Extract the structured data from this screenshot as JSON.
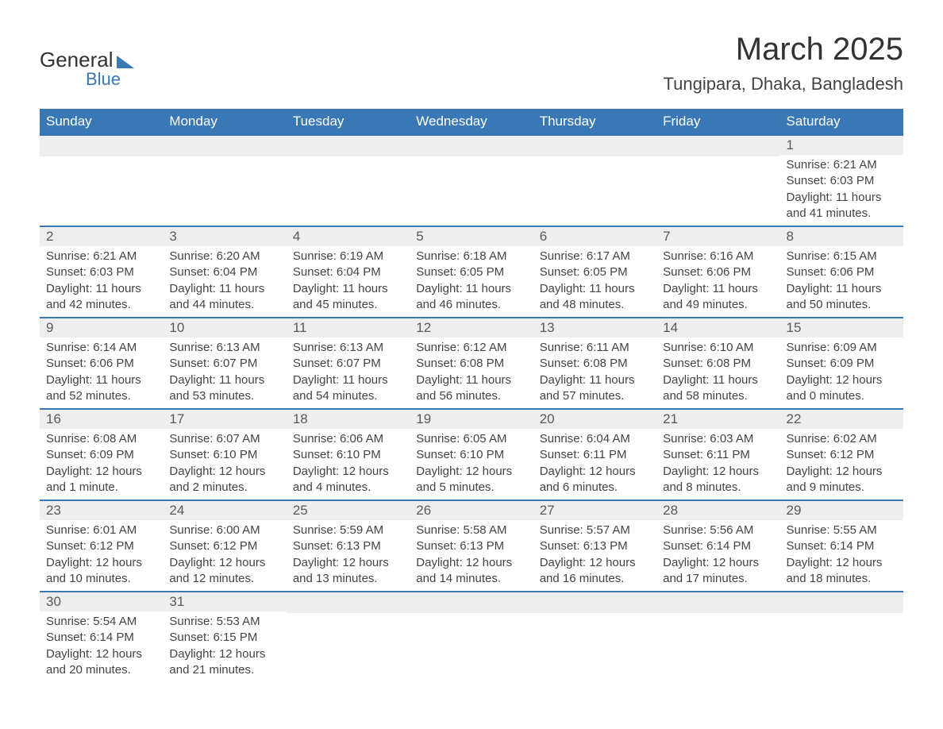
{
  "logo": {
    "text1": "General",
    "text2": "Blue"
  },
  "title": "March 2025",
  "subtitle": "Tungipara, Dhaka, Bangladesh",
  "colors": {
    "header_bg": "#3a78b5",
    "header_text": "#ffffff",
    "daynum_bg": "#eeeeee",
    "daynum_text": "#595959",
    "body_text": "#444444",
    "row_border": "#3a78b5",
    "background": "#ffffff"
  },
  "layout": {
    "columns": [
      "Sunday",
      "Monday",
      "Tuesday",
      "Wednesday",
      "Thursday",
      "Friday",
      "Saturday"
    ],
    "type": "calendar-table"
  },
  "weeks": [
    [
      null,
      null,
      null,
      null,
      null,
      null,
      {
        "d": "1",
        "sunrise": "Sunrise: 6:21 AM",
        "sunset": "Sunset: 6:03 PM",
        "daylight": "Daylight: 11 hours and 41 minutes."
      }
    ],
    [
      {
        "d": "2",
        "sunrise": "Sunrise: 6:21 AM",
        "sunset": "Sunset: 6:03 PM",
        "daylight": "Daylight: 11 hours and 42 minutes."
      },
      {
        "d": "3",
        "sunrise": "Sunrise: 6:20 AM",
        "sunset": "Sunset: 6:04 PM",
        "daylight": "Daylight: 11 hours and 44 minutes."
      },
      {
        "d": "4",
        "sunrise": "Sunrise: 6:19 AM",
        "sunset": "Sunset: 6:04 PM",
        "daylight": "Daylight: 11 hours and 45 minutes."
      },
      {
        "d": "5",
        "sunrise": "Sunrise: 6:18 AM",
        "sunset": "Sunset: 6:05 PM",
        "daylight": "Daylight: 11 hours and 46 minutes."
      },
      {
        "d": "6",
        "sunrise": "Sunrise: 6:17 AM",
        "sunset": "Sunset: 6:05 PM",
        "daylight": "Daylight: 11 hours and 48 minutes."
      },
      {
        "d": "7",
        "sunrise": "Sunrise: 6:16 AM",
        "sunset": "Sunset: 6:06 PM",
        "daylight": "Daylight: 11 hours and 49 minutes."
      },
      {
        "d": "8",
        "sunrise": "Sunrise: 6:15 AM",
        "sunset": "Sunset: 6:06 PM",
        "daylight": "Daylight: 11 hours and 50 minutes."
      }
    ],
    [
      {
        "d": "9",
        "sunrise": "Sunrise: 6:14 AM",
        "sunset": "Sunset: 6:06 PM",
        "daylight": "Daylight: 11 hours and 52 minutes."
      },
      {
        "d": "10",
        "sunrise": "Sunrise: 6:13 AM",
        "sunset": "Sunset: 6:07 PM",
        "daylight": "Daylight: 11 hours and 53 minutes."
      },
      {
        "d": "11",
        "sunrise": "Sunrise: 6:13 AM",
        "sunset": "Sunset: 6:07 PM",
        "daylight": "Daylight: 11 hours and 54 minutes."
      },
      {
        "d": "12",
        "sunrise": "Sunrise: 6:12 AM",
        "sunset": "Sunset: 6:08 PM",
        "daylight": "Daylight: 11 hours and 56 minutes."
      },
      {
        "d": "13",
        "sunrise": "Sunrise: 6:11 AM",
        "sunset": "Sunset: 6:08 PM",
        "daylight": "Daylight: 11 hours and 57 minutes."
      },
      {
        "d": "14",
        "sunrise": "Sunrise: 6:10 AM",
        "sunset": "Sunset: 6:08 PM",
        "daylight": "Daylight: 11 hours and 58 minutes."
      },
      {
        "d": "15",
        "sunrise": "Sunrise: 6:09 AM",
        "sunset": "Sunset: 6:09 PM",
        "daylight": "Daylight: 12 hours and 0 minutes."
      }
    ],
    [
      {
        "d": "16",
        "sunrise": "Sunrise: 6:08 AM",
        "sunset": "Sunset: 6:09 PM",
        "daylight": "Daylight: 12 hours and 1 minute."
      },
      {
        "d": "17",
        "sunrise": "Sunrise: 6:07 AM",
        "sunset": "Sunset: 6:10 PM",
        "daylight": "Daylight: 12 hours and 2 minutes."
      },
      {
        "d": "18",
        "sunrise": "Sunrise: 6:06 AM",
        "sunset": "Sunset: 6:10 PM",
        "daylight": "Daylight: 12 hours and 4 minutes."
      },
      {
        "d": "19",
        "sunrise": "Sunrise: 6:05 AM",
        "sunset": "Sunset: 6:10 PM",
        "daylight": "Daylight: 12 hours and 5 minutes."
      },
      {
        "d": "20",
        "sunrise": "Sunrise: 6:04 AM",
        "sunset": "Sunset: 6:11 PM",
        "daylight": "Daylight: 12 hours and 6 minutes."
      },
      {
        "d": "21",
        "sunrise": "Sunrise: 6:03 AM",
        "sunset": "Sunset: 6:11 PM",
        "daylight": "Daylight: 12 hours and 8 minutes."
      },
      {
        "d": "22",
        "sunrise": "Sunrise: 6:02 AM",
        "sunset": "Sunset: 6:12 PM",
        "daylight": "Daylight: 12 hours and 9 minutes."
      }
    ],
    [
      {
        "d": "23",
        "sunrise": "Sunrise: 6:01 AM",
        "sunset": "Sunset: 6:12 PM",
        "daylight": "Daylight: 12 hours and 10 minutes."
      },
      {
        "d": "24",
        "sunrise": "Sunrise: 6:00 AM",
        "sunset": "Sunset: 6:12 PM",
        "daylight": "Daylight: 12 hours and 12 minutes."
      },
      {
        "d": "25",
        "sunrise": "Sunrise: 5:59 AM",
        "sunset": "Sunset: 6:13 PM",
        "daylight": "Daylight: 12 hours and 13 minutes."
      },
      {
        "d": "26",
        "sunrise": "Sunrise: 5:58 AM",
        "sunset": "Sunset: 6:13 PM",
        "daylight": "Daylight: 12 hours and 14 minutes."
      },
      {
        "d": "27",
        "sunrise": "Sunrise: 5:57 AM",
        "sunset": "Sunset: 6:13 PM",
        "daylight": "Daylight: 12 hours and 16 minutes."
      },
      {
        "d": "28",
        "sunrise": "Sunrise: 5:56 AM",
        "sunset": "Sunset: 6:14 PM",
        "daylight": "Daylight: 12 hours and 17 minutes."
      },
      {
        "d": "29",
        "sunrise": "Sunrise: 5:55 AM",
        "sunset": "Sunset: 6:14 PM",
        "daylight": "Daylight: 12 hours and 18 minutes."
      }
    ],
    [
      {
        "d": "30",
        "sunrise": "Sunrise: 5:54 AM",
        "sunset": "Sunset: 6:14 PM",
        "daylight": "Daylight: 12 hours and 20 minutes."
      },
      {
        "d": "31",
        "sunrise": "Sunrise: 5:53 AM",
        "sunset": "Sunset: 6:15 PM",
        "daylight": "Daylight: 12 hours and 21 minutes."
      },
      null,
      null,
      null,
      null,
      null
    ]
  ]
}
